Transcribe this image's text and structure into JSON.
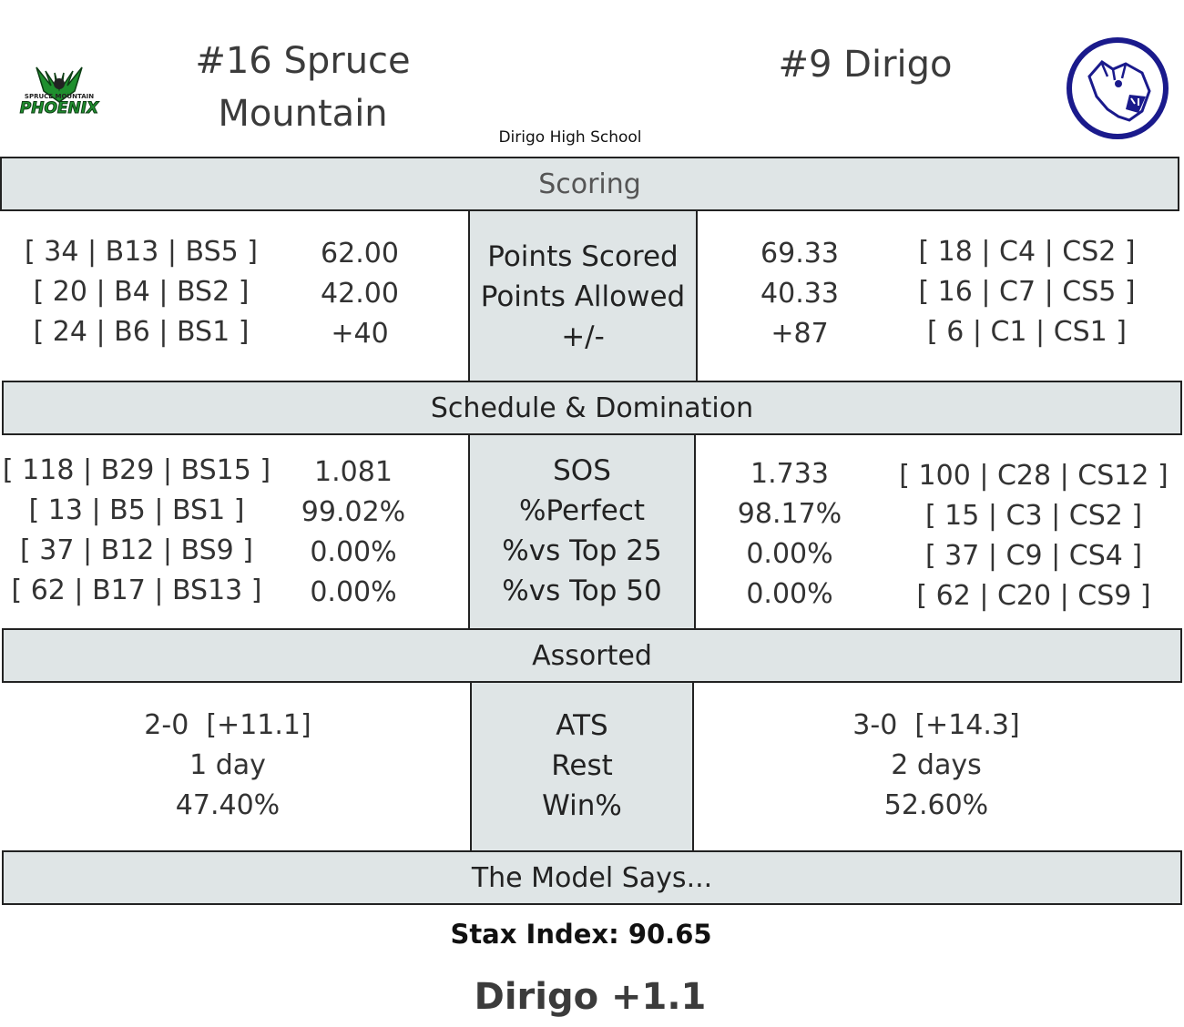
{
  "header": {
    "away_team": "#16 Spruce Mountain",
    "home_team": "#9 Dirigo",
    "venue": "Dirigo High School",
    "away_logo_text": "SPRUCE MOUNTAIN PHOENIX",
    "colors": {
      "phoenix_green": "#1f8f2e",
      "cougar_navy": "#1a1a8c",
      "header_bg": "#dfe5e6"
    }
  },
  "scoring": {
    "title": "Scoring",
    "away_ranks": [
      "[ 34 | B13 | BS5 ]",
      "[ 20 | B4 | BS2 ]",
      "[ 24 | B6 | BS1 ]"
    ],
    "away_values": [
      "62.00",
      "42.00",
      "+40"
    ],
    "labels": [
      "Points Scored",
      "Points Allowed",
      "+/-"
    ],
    "home_values": [
      "69.33",
      "40.33",
      "+87"
    ],
    "home_ranks": [
      "[ 18 | C4 | CS2 ]",
      "[ 16 | C7 | CS5 ]",
      "[ 6 | C1 | CS1 ]"
    ]
  },
  "schedule": {
    "title": "Schedule & Domination",
    "away_ranks": [
      "[ 118 | B29 | BS15 ]",
      "[ 13 | B5 | BS1 ]",
      "[ 37 | B12 | BS9 ]",
      "[ 62 | B17 | BS13 ]"
    ],
    "away_values": [
      "1.081",
      "99.02%",
      "0.00%",
      "0.00%"
    ],
    "labels": [
      "SOS",
      "%Perfect",
      "%vs Top 25",
      "%vs Top 50"
    ],
    "home_values": [
      "1.733",
      "98.17%",
      "0.00%",
      "0.00%"
    ],
    "home_ranks": [
      "[ 100 | C28 | CS12 ]",
      "[ 15 | C3 | CS2 ]",
      "[ 37 | C9 | CS4 ]",
      "[ 62 | C20 | CS9 ]"
    ]
  },
  "assorted": {
    "title": "Assorted",
    "away_values": [
      "2-0  [+11.1]",
      "1 day",
      "47.40%"
    ],
    "labels": [
      "ATS",
      "Rest",
      "Win%"
    ],
    "home_values": [
      "3-0  [+14.3]",
      "2 days",
      "52.60%"
    ]
  },
  "model": {
    "title": "The Model Says...",
    "stax_index": "Stax Index: 90.65",
    "pick": "Dirigo +1.1"
  }
}
